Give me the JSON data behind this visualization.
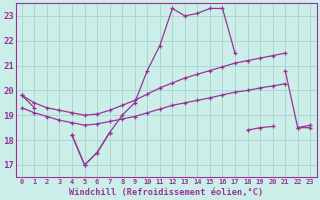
{
  "x_values": [
    0,
    1,
    2,
    3,
    4,
    5,
    6,
    7,
    8,
    9,
    10,
    11,
    12,
    13,
    14,
    15,
    16,
    17,
    18,
    19,
    20,
    21,
    22,
    23
  ],
  "line_main": [
    19.8,
    19.3,
    null,
    null,
    18.2,
    17.0,
    17.5,
    18.3,
    19.0,
    19.5,
    20.8,
    21.8,
    23.3,
    23.0,
    23.1,
    23.3,
    23.3,
    21.5,
    null,
    null,
    null,
    20.8,
    18.5,
    18.5
  ],
  "line_upper_trend": [
    19.8,
    19.5,
    19.3,
    19.2,
    19.1,
    19.0,
    19.05,
    19.2,
    19.4,
    19.6,
    19.85,
    20.1,
    20.3,
    20.5,
    20.65,
    20.8,
    20.95,
    21.1,
    21.2,
    21.3,
    21.4,
    21.5,
    null,
    null
  ],
  "line_lower_trend": [
    19.3,
    19.1,
    18.95,
    18.8,
    18.7,
    18.6,
    18.65,
    18.75,
    18.85,
    18.95,
    19.1,
    19.25,
    19.4,
    19.5,
    19.6,
    19.7,
    19.82,
    19.93,
    20.0,
    20.1,
    20.18,
    20.27,
    null,
    null
  ],
  "line_flat": [
    null,
    null,
    null,
    null,
    18.2,
    17.0,
    17.5,
    18.3,
    null,
    null,
    null,
    null,
    null,
    null,
    null,
    null,
    null,
    null,
    18.4,
    18.5,
    18.55,
    null,
    18.5,
    18.6
  ],
  "color": "#993399",
  "bg_color": "#cceee8",
  "grid_color": "#aad8d2",
  "xlabel": "Windchill (Refroidissement éolien,°C)",
  "ylim": [
    16.5,
    23.5
  ],
  "xlim": [
    -0.5,
    23.5
  ],
  "yticks": [
    17,
    18,
    19,
    20,
    21,
    22,
    23
  ],
  "xtick_labels": [
    "0",
    "1",
    "2",
    "3",
    "4",
    "5",
    "6",
    "7",
    "8",
    "9",
    "10",
    "11",
    "12",
    "13",
    "14",
    "15",
    "16",
    "17",
    "18",
    "19",
    "20",
    "21",
    "22",
    "23"
  ],
  "marker": "+",
  "lw": 0.9,
  "ms": 3.5
}
